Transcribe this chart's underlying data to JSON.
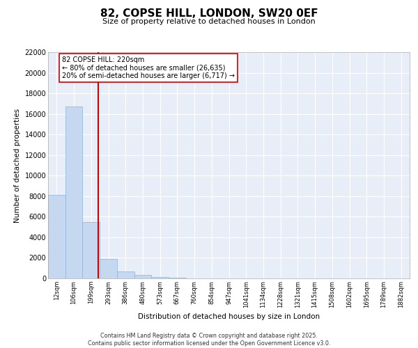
{
  "title": "82, COPSE HILL, LONDON, SW20 0EF",
  "subtitle": "Size of property relative to detached houses in London",
  "xlabel": "Distribution of detached houses by size in London",
  "ylabel": "Number of detached properties",
  "bar_color": "#c5d8f0",
  "bar_edge_color": "#8ab4d8",
  "background_color": "#e8eef8",
  "grid_color": "#ffffff",
  "categories": [
    "12sqm",
    "106sqm",
    "199sqm",
    "293sqm",
    "386sqm",
    "480sqm",
    "573sqm",
    "667sqm",
    "760sqm",
    "854sqm",
    "947sqm",
    "1041sqm",
    "1134sqm",
    "1228sqm",
    "1321sqm",
    "1415sqm",
    "1508sqm",
    "1602sqm",
    "1695sqm",
    "1789sqm",
    "1882sqm"
  ],
  "values": [
    8150,
    16700,
    5500,
    1880,
    680,
    350,
    150,
    60,
    15,
    5,
    0,
    0,
    0,
    0,
    0,
    0,
    0,
    0,
    0,
    0,
    0
  ],
  "vline_color": "#cc0000",
  "annotation_text": "82 COPSE HILL: 220sqm\n← 80% of detached houses are smaller (26,635)\n20% of semi-detached houses are larger (6,717) →",
  "annotation_box_color": "#ffffff",
  "annotation_box_edge": "#cc0000",
  "ylim": [
    0,
    22000
  ],
  "yticks": [
    0,
    2000,
    4000,
    6000,
    8000,
    10000,
    12000,
    14000,
    16000,
    18000,
    20000,
    22000
  ],
  "footer_line1": "Contains HM Land Registry data © Crown copyright and database right 2025.",
  "footer_line2": "Contains public sector information licensed under the Open Government Licence v3.0."
}
